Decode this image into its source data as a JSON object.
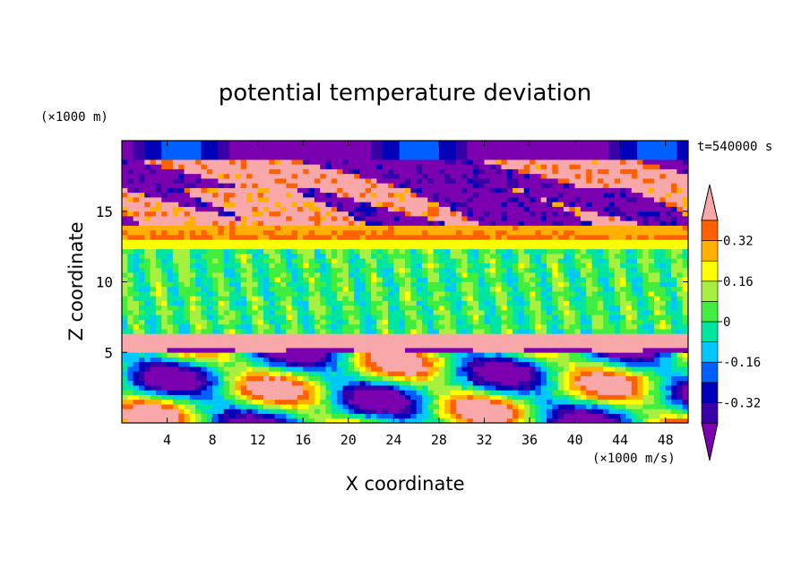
{
  "chart_data": {
    "type": "heatmap",
    "title": "potential temperature deviation",
    "xlabel": "X coordinate",
    "ylabel": "Z coordinate",
    "x_unit": "(×1000 m/s)",
    "y_unit": "(×1000 m)",
    "time_label": "t=540000 s",
    "xlim": [
      0,
      50
    ],
    "ylim": [
      0,
      20
    ],
    "x_ticks": [
      4,
      8,
      12,
      16,
      20,
      24,
      28,
      32,
      36,
      40,
      44,
      48
    ],
    "y_ticks": [
      5,
      10,
      15
    ],
    "colorbar": {
      "levels": [
        -0.4,
        -0.32,
        -0.24,
        -0.16,
        -0.08,
        0,
        0.08,
        0.16,
        0.24,
        0.32,
        0.4
      ],
      "tick_labels": [
        "0.32",
        "0.16",
        "0",
        "-0.16",
        "-0.32"
      ],
      "tick_values": [
        0.32,
        0.16,
        0,
        -0.16,
        -0.32
      ],
      "colors": [
        "#7a00b0",
        "#3a00a8",
        "#0000b8",
        "#0060ff",
        "#00c8ff",
        "#00e6a0",
        "#40ee40",
        "#a8f040",
        "#ffff00",
        "#ffb000",
        "#ff6000",
        "#ff2020",
        "#f8a8a8"
      ],
      "extend": "both"
    },
    "grid": false
  }
}
